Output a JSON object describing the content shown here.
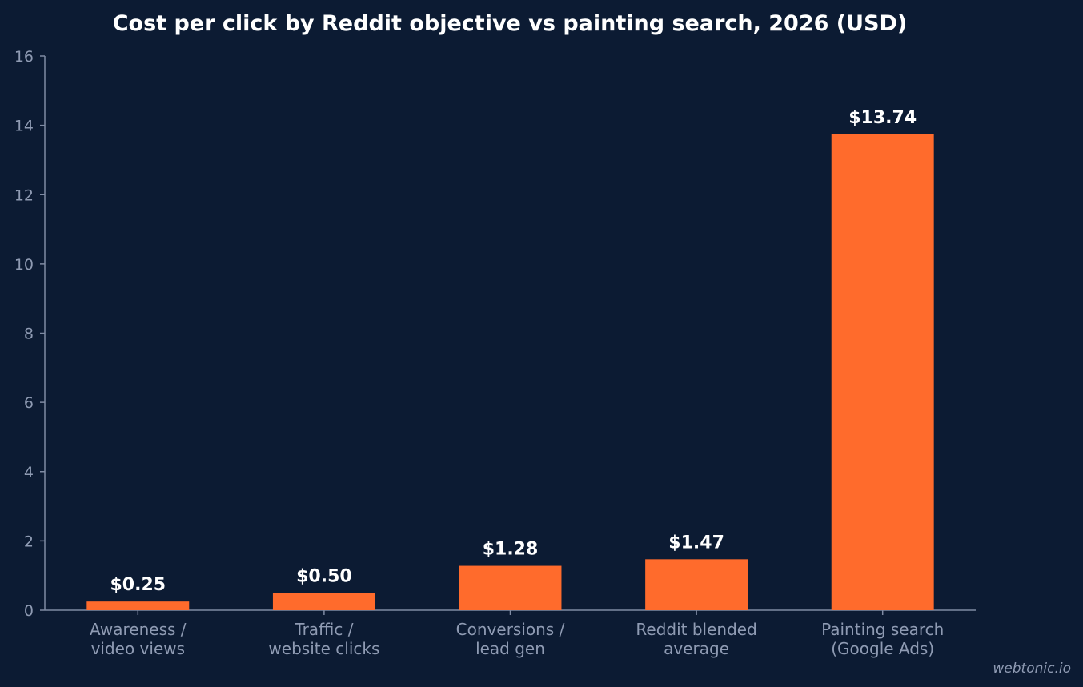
{
  "chart_data": {
    "type": "bar",
    "title": "Cost per click by Reddit objective vs painting search, 2026 (USD)",
    "xlabel": "",
    "ylabel": "",
    "ylim": [
      0,
      16
    ],
    "yticks": [
      "0",
      "2",
      "4",
      "6",
      "8",
      "10",
      "12",
      "14",
      "16"
    ],
    "categories": [
      [
        "Awareness /",
        "video views"
      ],
      [
        "Traffic /",
        "website clicks"
      ],
      [
        "Conversions /",
        "lead gen"
      ],
      [
        "Reddit blended",
        "average"
      ],
      [
        "Painting search",
        "(Google Ads)"
      ]
    ],
    "values": [
      0.25,
      0.5,
      1.28,
      1.47,
      13.74
    ],
    "data_labels": [
      "$0.25",
      "$0.50",
      "$1.28",
      "$1.47",
      "$13.74"
    ],
    "bar_color": "#ff6b2c",
    "grid": false,
    "legend": "none"
  },
  "watermark": "webtonic.io"
}
